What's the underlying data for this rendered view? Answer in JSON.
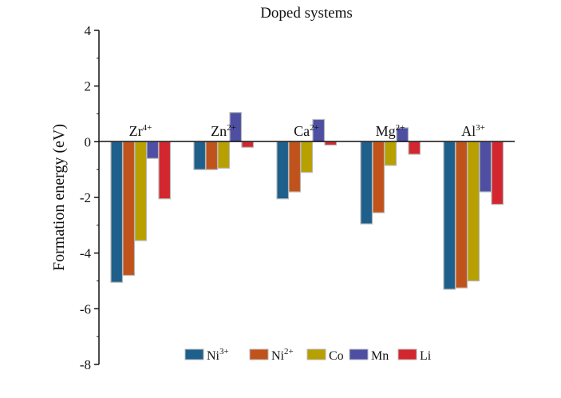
{
  "chart_data": {
    "type": "bar",
    "title": "Doped systems",
    "ylabel": "Formation energy  (eV)",
    "xlabel": "",
    "ylim": [
      -8,
      4
    ],
    "yticks": [
      4,
      2,
      0,
      -2,
      -4,
      -6,
      -8
    ],
    "yticks_text": [
      "4",
      "2",
      "0",
      "-2",
      "-4",
      "-6",
      "-8"
    ],
    "categories": [
      {
        "base": "Zr",
        "sup": "4+"
      },
      {
        "base": "Zn",
        "sup": "2+"
      },
      {
        "base": "Ca",
        "sup": "2+"
      },
      {
        "base": "Mg",
        "sup": "2+"
      },
      {
        "base": "Al",
        "sup": "3+"
      }
    ],
    "series": [
      {
        "base": "Ni",
        "sup": "3+",
        "color": "#1f5f8b",
        "values": [
          -5.05,
          -1.0,
          -2.05,
          -2.95,
          -5.3
        ]
      },
      {
        "base": "Ni",
        "sup": "2+",
        "color": "#c0531b",
        "values": [
          -4.8,
          -1.0,
          -1.8,
          -2.55,
          -5.25
        ]
      },
      {
        "base": "Co",
        "sup": "",
        "color": "#b8a000",
        "values": [
          -3.55,
          -0.95,
          -1.1,
          -0.85,
          -5.0
        ]
      },
      {
        "base": "Mn",
        "sup": "",
        "color": "#4e4fa3",
        "values": [
          -0.6,
          1.05,
          0.8,
          0.5,
          -1.8
        ]
      },
      {
        "base": "Li",
        "sup": "",
        "color": "#d3262e",
        "values": [
          -2.05,
          -0.2,
          -0.12,
          -0.45,
          -2.25
        ]
      }
    ],
    "grid": false,
    "legend": "bottom-center"
  }
}
